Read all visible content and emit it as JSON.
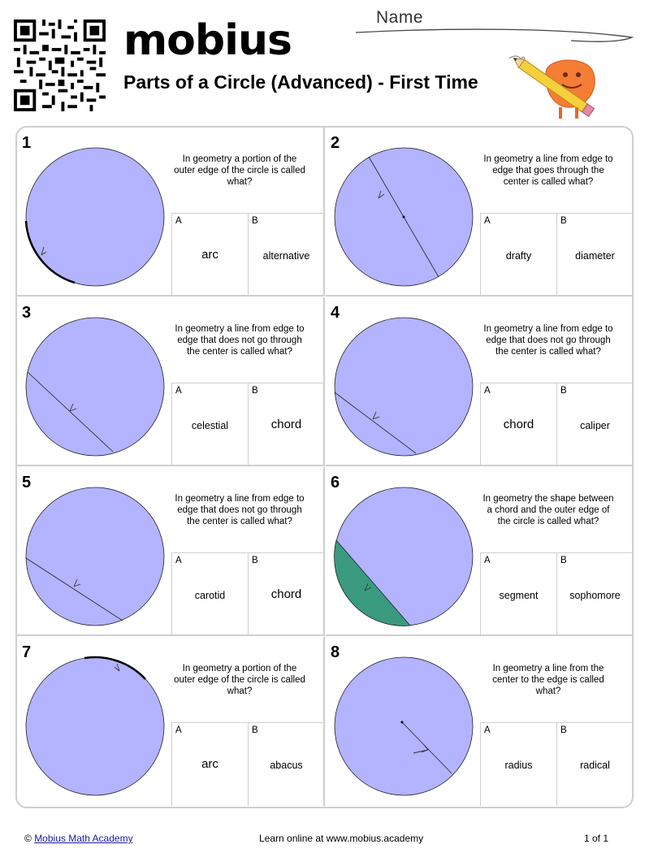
{
  "header": {
    "logo_text": "mobius",
    "title": "Parts of a Circle (Advanced) - First Time",
    "name_label": "Name"
  },
  "colors": {
    "circle_fill": "#b3b3ff",
    "segment_fill": "#3a9a80",
    "border": "#cfcfcf",
    "mascot": "#f57d36"
  },
  "questions": [
    {
      "number": "1",
      "text": "In geometry a portion of the outer edge of the circle is called what?",
      "a_label": "A",
      "a_text": "arc",
      "b_label": "B",
      "b_text": "alternative"
    },
    {
      "number": "2",
      "text": "In geometry a line from edge to edge that goes through the center is called what?",
      "a_label": "A",
      "a_text": "drafty",
      "b_label": "B",
      "b_text": "diameter"
    },
    {
      "number": "3",
      "text": "In geometry a line from edge to edge that does not go through the center is called what?",
      "a_label": "A",
      "a_text": "celestial",
      "b_label": "B",
      "b_text": "chord"
    },
    {
      "number": "4",
      "text": "In geometry a line from edge to edge that does not go through the center is called what?",
      "a_label": "A",
      "a_text": "chord",
      "b_label": "B",
      "b_text": "caliper"
    },
    {
      "number": "5",
      "text": "In geometry a line from edge to edge that does not go through the center is called what?",
      "a_label": "A",
      "a_text": "carotid",
      "b_label": "B",
      "b_text": "chord"
    },
    {
      "number": "6",
      "text": "In geometry the shape between a chord and the outer edge of the circle is called what?",
      "a_label": "A",
      "a_text": "segment",
      "b_label": "B",
      "b_text": "sophomore"
    },
    {
      "number": "7",
      "text": "In geometry a portion of the outer edge of the circle is called what?",
      "a_label": "A",
      "a_text": "arc",
      "b_label": "B",
      "b_text": "abacus"
    },
    {
      "number": "8",
      "text": "In geometry a line from the center to the edge is called what?",
      "a_label": "A",
      "a_text": "radius",
      "b_label": "B",
      "b_text": "radical"
    }
  ],
  "footer": {
    "copyright": "©",
    "academy_link": "Mobius Math Academy",
    "learn_online": "Learn online at www.mobius.academy",
    "page": "1 of 1"
  }
}
